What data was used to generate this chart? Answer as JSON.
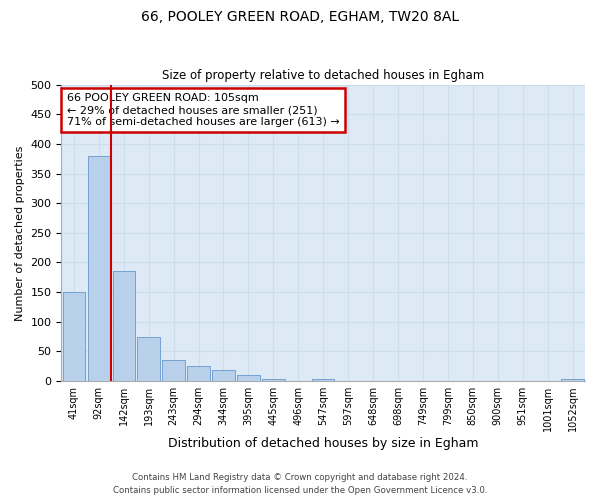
{
  "title1": "66, POOLEY GREEN ROAD, EGHAM, TW20 8AL",
  "title2": "Size of property relative to detached houses in Egham",
  "xlabel": "Distribution of detached houses by size in Egham",
  "ylabel": "Number of detached properties",
  "footer1": "Contains HM Land Registry data © Crown copyright and database right 2024.",
  "footer2": "Contains public sector information licensed under the Open Government Licence v3.0.",
  "bar_labels": [
    "41sqm",
    "92sqm",
    "142sqm",
    "193sqm",
    "243sqm",
    "294sqm",
    "344sqm",
    "395sqm",
    "445sqm",
    "496sqm",
    "547sqm",
    "597sqm",
    "648sqm",
    "698sqm",
    "749sqm",
    "799sqm",
    "850sqm",
    "900sqm",
    "951sqm",
    "1001sqm",
    "1052sqm"
  ],
  "bar_values": [
    150,
    380,
    185,
    75,
    35,
    25,
    18,
    10,
    4,
    0,
    4,
    0,
    0,
    0,
    0,
    0,
    0,
    0,
    0,
    0,
    4
  ],
  "bar_color": "#b8d0ea",
  "bar_edge_color": "#6699cc",
  "grid_color": "#ccdded",
  "annotation_text": "66 POOLEY GREEN ROAD: 105sqm\n← 29% of detached houses are smaller (251)\n71% of semi-detached houses are larger (613) →",
  "annotation_box_color": "#ffffff",
  "annotation_box_edge": "#cc0000",
  "redline_color": "#cc0000",
  "redline_x": 1.5,
  "bg_color": "#ddeaf6",
  "ylim": [
    0,
    500
  ],
  "yticks": [
    0,
    50,
    100,
    150,
    200,
    250,
    300,
    350,
    400,
    450,
    500
  ]
}
